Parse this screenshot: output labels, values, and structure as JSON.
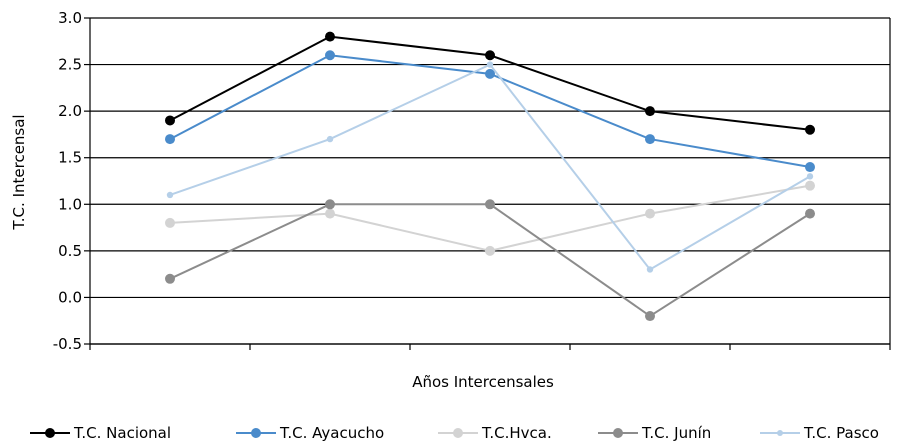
{
  "chart_data": {
    "type": "line",
    "xlabel": "Años Intercensales",
    "ylabel": "T.C. Intercensal",
    "ylim": [
      -0.5,
      3.0
    ],
    "yticks": [
      "3.0",
      "2.5",
      "2.0",
      "1.5",
      "1.0",
      "0.5",
      "0.0",
      "-0.5"
    ],
    "categories": [
      "",
      "",
      "",
      "",
      ""
    ],
    "grid": true,
    "legend_position": "bottom",
    "series": [
      {
        "name": "T.C. Nacional",
        "color": "#000000",
        "values": [
          1.9,
          2.8,
          2.6,
          2.0,
          1.8
        ]
      },
      {
        "name": "T.C. Ayacucho",
        "color": "#4a8bcb",
        "values": [
          1.7,
          2.6,
          2.4,
          1.7,
          1.4
        ]
      },
      {
        "name": "T.C.Hvca.",
        "color": "#d3d3d3",
        "values": [
          0.8,
          0.9,
          0.5,
          0.9,
          1.2
        ]
      },
      {
        "name": "T.C. Junín",
        "color": "#8c8c8c",
        "values": [
          0.2,
          1.0,
          1.0,
          -0.2,
          0.9
        ]
      },
      {
        "name": "T.C. Pasco",
        "color": "#b5cfe8",
        "values": [
          1.1,
          1.7,
          2.5,
          0.3,
          1.3
        ]
      }
    ]
  }
}
